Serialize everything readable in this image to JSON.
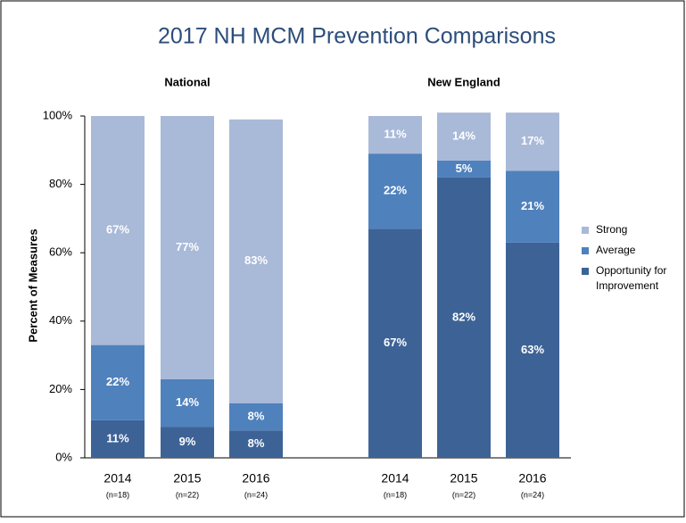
{
  "chart_data": {
    "type": "stacked_bar",
    "title": "2017 NH MCM Prevention Comparisons",
    "y_label": "Percent  of Measures",
    "groups": [
      {
        "name": "National",
        "categories": [
          "2014",
          "2015",
          "2016"
        ],
        "notes": [
          "(n=18)",
          "(n=22)",
          "(n=24)"
        ]
      },
      {
        "name": "New England",
        "categories": [
          "2014",
          "2015",
          "2016"
        ],
        "notes": [
          "(n=18)",
          "(n=22)",
          "(n=24)"
        ]
      }
    ],
    "series": [
      {
        "name": "Opportunity for Improvement",
        "color": "#3d6396",
        "values": [
          11,
          9,
          8,
          67,
          82,
          63
        ],
        "value_labels": [
          "11%",
          "9%",
          "8%",
          "67%",
          "82%",
          "63%"
        ]
      },
      {
        "name": "Average",
        "color": "#4f81bd",
        "values": [
          22,
          14,
          8,
          22,
          5,
          21
        ],
        "value_labels": [
          "22%",
          "14%",
          "8%",
          "22%",
          "5%",
          "21%"
        ]
      },
      {
        "name": "Strong",
        "color": "#a9b9d8",
        "values": [
          67,
          77,
          83,
          11,
          14,
          17
        ],
        "value_labels": [
          "67%",
          "77%",
          "83%",
          "11%",
          "14%",
          "17%"
        ]
      }
    ],
    "ylim": [
      0,
      100
    ],
    "yticks": [
      {
        "value": 0,
        "label": "0%"
      },
      {
        "value": 20,
        "label": "20%"
      },
      {
        "value": 40,
        "label": "40%"
      },
      {
        "value": 60,
        "label": "60%"
      },
      {
        "value": 80,
        "label": "80%"
      },
      {
        "value": 100,
        "label": "100%"
      }
    ],
    "legend": "right"
  }
}
